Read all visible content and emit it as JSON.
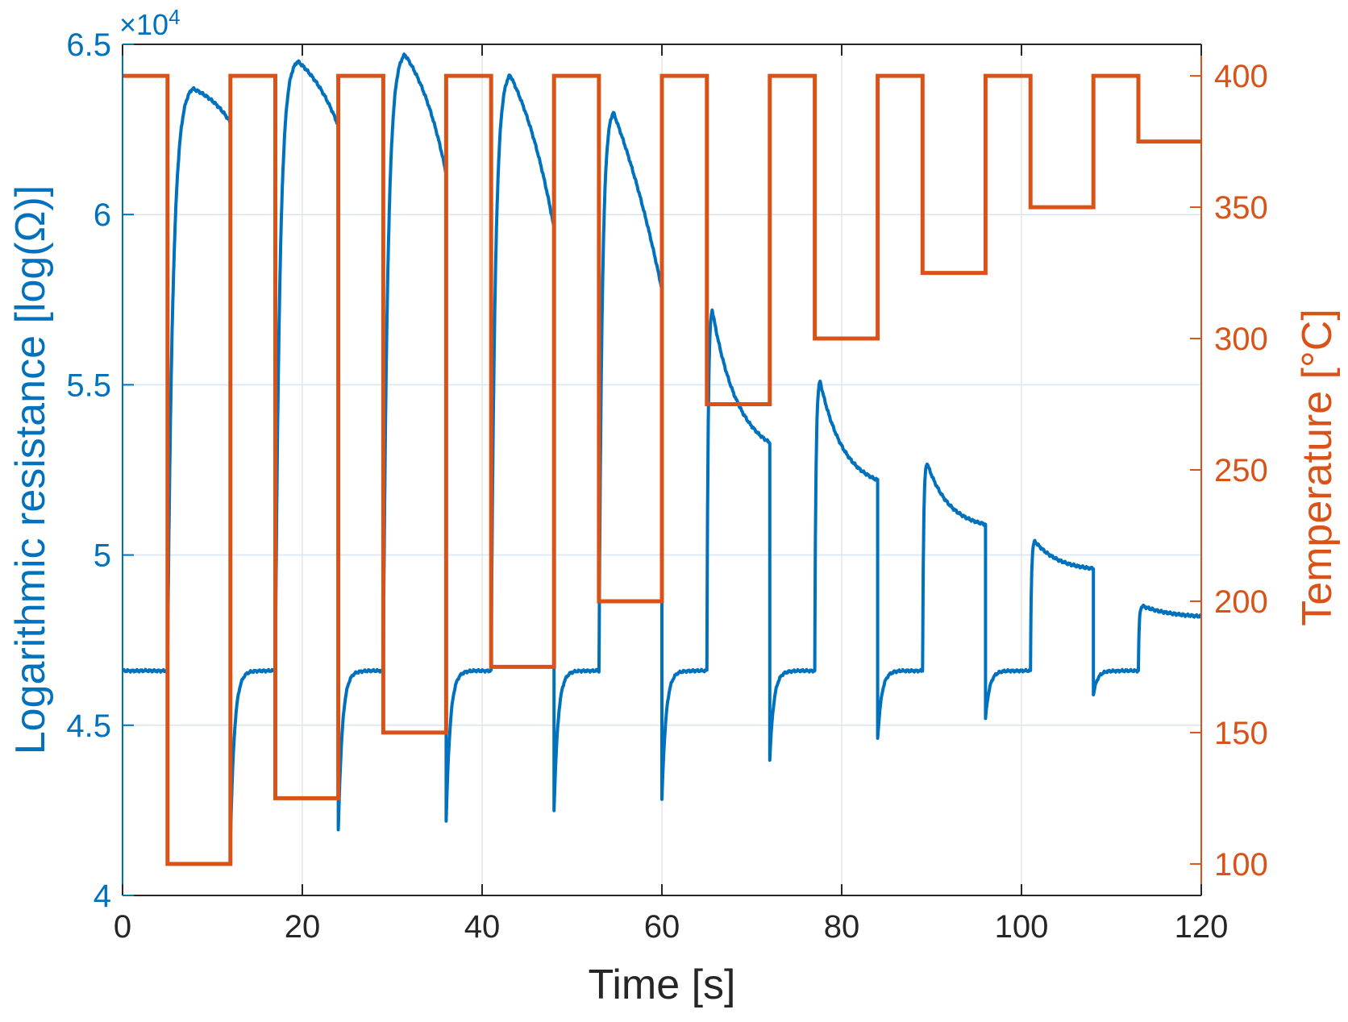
{
  "figure": {
    "x_axis": {
      "label": "Time [s]"
    },
    "y_left_axis": {
      "label": "Logarithmic resistance [log(Ω)]",
      "multiplier_base": "×10",
      "multiplier_exponent": "4",
      "color": "#0072BD"
    },
    "y_right_axis": {
      "label": "Temperature [°C]",
      "color": "#D95319"
    }
  },
  "chart_data": {
    "type": "line",
    "title": "",
    "xlabel": "Time [s]",
    "x_range": [
      0,
      120
    ],
    "x_ticks": [
      0,
      20,
      40,
      60,
      80,
      100,
      120
    ],
    "grid": true,
    "legend": "none",
    "left_axis": {
      "label": "Logarithmic resistance [log(Ω)]",
      "unit_multiplier": "1e4",
      "range": [
        4,
        6.5
      ],
      "ticks": [
        4,
        4.5,
        5,
        5.5,
        6,
        6.5
      ],
      "color": "#0072BD"
    },
    "right_axis": {
      "label": "Temperature [°C]",
      "range": [
        88,
        412
      ],
      "ticks": [
        100,
        150,
        200,
        250,
        300,
        350,
        400
      ],
      "color": "#D95319"
    },
    "series": [
      {
        "name": "Logarithmic resistance",
        "axis": "left",
        "color": "#0072BD",
        "style": "continuous response curve: flat baseline during 400 °C phases, sharp rise and slow decay during each low-temperature step, vertical drop with undershoot spike at each return to 400 °C",
        "baseline": 4.66,
        "recovery_tau_s": 0.45,
        "cycles": [
          {
            "t_low_start": 5,
            "t_peak": 7.8,
            "t_low_end": 12,
            "temp_C": 100,
            "peak": 6.37,
            "end_of_step": 6.27,
            "decay_k": -1.3,
            "undershoot_min": 4.16,
            "rise_tau_s": 0.6
          },
          {
            "t_low_start": 17,
            "t_peak": 19.5,
            "t_low_end": 24,
            "temp_C": 125,
            "peak": 6.45,
            "end_of_step": 6.26,
            "decay_k": -1.1,
            "undershoot_min": 4.19,
            "rise_tau_s": 0.5
          },
          {
            "t_low_start": 29,
            "t_peak": 31.4,
            "t_low_end": 36,
            "temp_C": 150,
            "peak": 6.47,
            "end_of_step": 6.12,
            "decay_k": -1.2,
            "undershoot_min": 4.22,
            "rise_tau_s": 0.5
          },
          {
            "t_low_start": 41,
            "t_peak": 43.1,
            "t_low_end": 48,
            "temp_C": 175,
            "peak": 6.41,
            "end_of_step": 5.96,
            "decay_k": -1.0,
            "undershoot_min": 4.25,
            "rise_tau_s": 0.45
          },
          {
            "t_low_start": 53,
            "t_peak": 54.6,
            "t_low_end": 60,
            "temp_C": 200,
            "peak": 6.3,
            "end_of_step": 5.78,
            "decay_k": -0.6,
            "undershoot_min": 4.28,
            "rise_tau_s": 0.35
          },
          {
            "t_low_start": 65,
            "t_peak": 65.6,
            "t_low_end": 72,
            "temp_C": 275,
            "peak": 5.72,
            "end_of_step": 5.33,
            "decay_k": 2.2,
            "undershoot_min": 4.4,
            "rise_tau_s": 0.14
          },
          {
            "t_low_start": 77,
            "t_peak": 77.6,
            "t_low_end": 84,
            "temp_C": 300,
            "peak": 5.51,
            "end_of_step": 5.22,
            "decay_k": 2.4,
            "undershoot_min": 4.46,
            "rise_tau_s": 0.13
          },
          {
            "t_low_start": 89,
            "t_peak": 89.5,
            "t_low_end": 96,
            "temp_C": 325,
            "peak": 5.27,
            "end_of_step": 5.09,
            "decay_k": 2.6,
            "undershoot_min": 4.52,
            "rise_tau_s": 0.11
          },
          {
            "t_low_start": 101,
            "t_peak": 101.5,
            "t_low_end": 108,
            "temp_C": 350,
            "peak": 5.04,
            "end_of_step": 4.96,
            "decay_k": 2.4,
            "undershoot_min": 4.59,
            "rise_tau_s": 0.1
          },
          {
            "t_low_start": 113,
            "t_peak": 113.5,
            "t_low_end": 120,
            "temp_C": 375,
            "peak": 4.85,
            "end_of_step": 4.82,
            "decay_k": 2.0,
            "undershoot_min": null,
            "rise_tau_s": 0.09
          }
        ]
      },
      {
        "name": "Temperature",
        "axis": "right",
        "color": "#D95319",
        "style": "square-wave step profile, 5 s at 400 °C alternating with 7 s low steps",
        "step_points": [
          [
            0,
            400
          ],
          [
            5,
            400
          ],
          [
            5,
            100
          ],
          [
            12,
            100
          ],
          [
            12,
            400
          ],
          [
            17,
            400
          ],
          [
            17,
            125
          ],
          [
            24,
            125
          ],
          [
            24,
            400
          ],
          [
            29,
            400
          ],
          [
            29,
            150
          ],
          [
            36,
            150
          ],
          [
            36,
            400
          ],
          [
            41,
            400
          ],
          [
            41,
            175
          ],
          [
            48,
            175
          ],
          [
            48,
            400
          ],
          [
            53,
            400
          ],
          [
            53,
            200
          ],
          [
            60,
            200
          ],
          [
            60,
            400
          ],
          [
            65,
            400
          ],
          [
            65,
            275
          ],
          [
            72,
            275
          ],
          [
            72,
            400
          ],
          [
            77,
            400
          ],
          [
            77,
            300
          ],
          [
            84,
            300
          ],
          [
            84,
            400
          ],
          [
            89,
            400
          ],
          [
            89,
            325
          ],
          [
            96,
            325
          ],
          [
            96,
            400
          ],
          [
            101,
            400
          ],
          [
            101,
            350
          ],
          [
            108,
            350
          ],
          [
            108,
            400
          ],
          [
            113,
            400
          ],
          [
            113,
            375
          ],
          [
            120,
            375
          ]
        ]
      }
    ]
  },
  "style_tokens": {
    "blue": "#0072BD",
    "orange": "#D95319",
    "axis_dark": "#262626",
    "hgrid": "#d9e6f3",
    "vgrid": "#e4e7ea"
  }
}
